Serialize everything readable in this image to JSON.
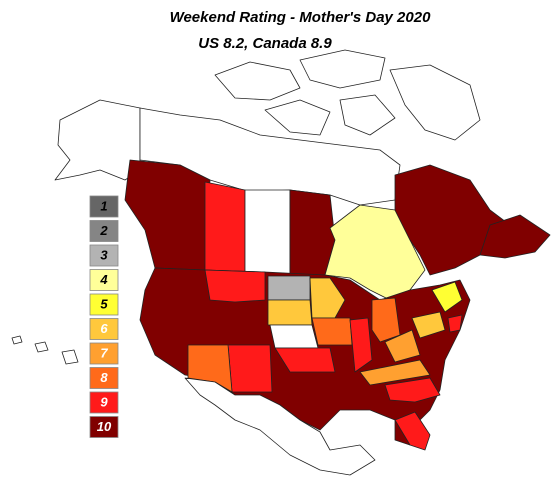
{
  "title": "Weekend Rating - Mother's Day 2020",
  "subtitle": "US 8.2, Canada 8.9",
  "legend": [
    {
      "label": "1",
      "color": "#666666",
      "text_color": "#000000"
    },
    {
      "label": "2",
      "color": "#858585",
      "text_color": "#000000"
    },
    {
      "label": "3",
      "color": "#b3b3b3",
      "text_color": "#000000"
    },
    {
      "label": "4",
      "color": "#ffff99",
      "text_color": "#000000"
    },
    {
      "label": "5",
      "color": "#ffff33",
      "text_color": "#000000"
    },
    {
      "label": "6",
      "color": "#ffc83c",
      "text_color": "#ffffff"
    },
    {
      "label": "7",
      "color": "#ffa030",
      "text_color": "#ffffff"
    },
    {
      "label": "8",
      "color": "#ff6a1a",
      "text_color": "#ffffff"
    },
    {
      "label": "9",
      "color": "#ff1a1a",
      "text_color": "#ffffff"
    },
    {
      "label": "10",
      "color": "#800000",
      "text_color": "#ffffff"
    }
  ]
}
